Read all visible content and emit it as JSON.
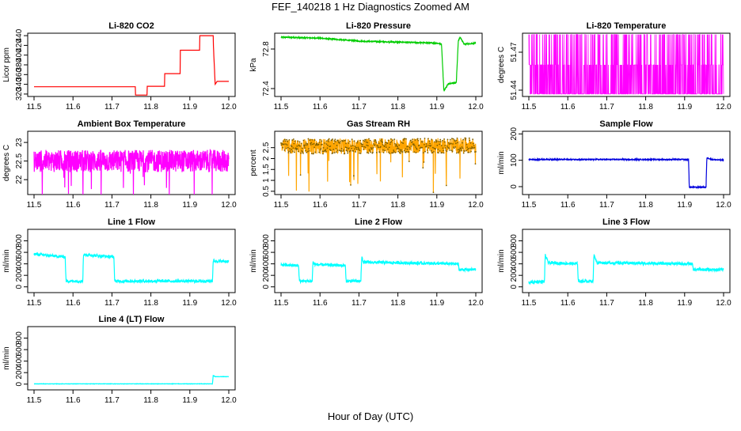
{
  "figure": {
    "title": "FEF_140218  1 Hz Diagnostics Zoomed AM",
    "xlabel": "Hour of Day (UTC)"
  },
  "chart_data": [
    {
      "id": "co2",
      "type": "line",
      "title": "Li-820 CO2",
      "ylabel": "Licor ppm",
      "color": "#ff0000",
      "xlim": [
        11.5,
        12.0
      ],
      "xticks": [
        11.5,
        11.6,
        11.7,
        11.8,
        11.9,
        12.0
      ],
      "ylim": [
        315,
        445
      ],
      "yticks": [
        320,
        340,
        360,
        380,
        400,
        420,
        440
      ],
      "noise": 0,
      "points": [
        [
          11.5,
          335
        ],
        [
          11.76,
          335
        ],
        [
          11.76,
          318
        ],
        [
          11.79,
          318
        ],
        [
          11.79,
          336
        ],
        [
          11.835,
          336
        ],
        [
          11.835,
          362
        ],
        [
          11.875,
          362
        ],
        [
          11.875,
          410
        ],
        [
          11.925,
          410
        ],
        [
          11.925,
          440
        ],
        [
          11.96,
          440
        ],
        [
          11.96,
          428
        ],
        [
          11.965,
          340
        ],
        [
          11.97,
          346
        ],
        [
          12.0,
          346
        ]
      ]
    },
    {
      "id": "pressure",
      "type": "line",
      "title": "Li-820 Pressure",
      "ylabel": "kPa",
      "color": "#00cc00",
      "xlim": [
        11.5,
        12.0
      ],
      "xticks": [
        11.5,
        11.6,
        11.7,
        11.8,
        11.9,
        12.0
      ],
      "ylim": [
        72.32,
        72.96
      ],
      "yticks": [
        72.4,
        72.8
      ],
      "noise": 0.006,
      "points": [
        [
          11.5,
          72.92
        ],
        [
          11.6,
          72.91
        ],
        [
          11.7,
          72.88
        ],
        [
          11.8,
          72.87
        ],
        [
          11.9,
          72.86
        ],
        [
          11.912,
          72.85
        ],
        [
          11.918,
          72.38
        ],
        [
          11.93,
          72.45
        ],
        [
          11.95,
          72.46
        ],
        [
          11.955,
          72.88
        ],
        [
          11.96,
          72.92
        ],
        [
          11.97,
          72.85
        ],
        [
          12.0,
          72.86
        ]
      ]
    },
    {
      "id": "licor-temp",
      "type": "line",
      "title": "Li-820 Temperature",
      "ylabel": "degrees C",
      "color": "#ff00ff",
      "xlim": [
        11.5,
        12.0
      ],
      "xticks": [
        11.5,
        11.6,
        11.7,
        11.8,
        11.9,
        12.0
      ],
      "ylim": [
        51.435,
        51.485
      ],
      "yticks": [
        51.44,
        51.47
      ],
      "style": "binary",
      "levels": [
        51.437,
        51.46,
        51.484
      ]
    },
    {
      "id": "box-temp",
      "type": "line",
      "title": "Ambient Box Temperature",
      "ylabel": "degrees C",
      "color": "#ff00ff",
      "xlim": [
        11.5,
        12.0
      ],
      "xticks": [
        11.5,
        11.6,
        11.7,
        11.8,
        11.9,
        12.0
      ],
      "ylim": [
        21.6,
        23.3
      ],
      "yticks": [
        22.0,
        22.5,
        23.0
      ],
      "noise": 0.3,
      "spikes": "down",
      "points": [
        [
          11.5,
          22.5
        ],
        [
          12.0,
          22.5
        ]
      ]
    },
    {
      "id": "rh",
      "type": "line",
      "title": "Gas Stream RH",
      "ylabel": "percent",
      "color": "#ffa500",
      "xlim": [
        11.5,
        12.0
      ],
      "xticks": [
        11.5,
        11.6,
        11.7,
        11.8,
        11.9,
        12.0
      ],
      "ylim": [
        0.35,
        3.25
      ],
      "yticks": [
        0.5,
        1.0,
        1.5,
        2.0,
        2.5
      ],
      "noise": 0.35,
      "spikes": "down",
      "markers": true,
      "points": [
        [
          11.5,
          2.55
        ],
        [
          12.0,
          2.6
        ]
      ]
    },
    {
      "id": "sample-flow",
      "type": "line",
      "title": "Sample Flow",
      "ylabel": "ml/min",
      "color": "#0000dd",
      "xlim": [
        11.5,
        12.0
      ],
      "xticks": [
        11.5,
        11.6,
        11.7,
        11.8,
        11.9,
        12.0
      ],
      "ylim": [
        -30,
        210
      ],
      "yticks": [
        0,
        100,
        200
      ],
      "noise": 2,
      "points": [
        [
          11.5,
          103
        ],
        [
          11.91,
          103
        ],
        [
          11.912,
          -2
        ],
        [
          11.955,
          -2
        ],
        [
          11.957,
          110
        ],
        [
          11.97,
          103
        ],
        [
          12.0,
          100
        ]
      ]
    },
    {
      "id": "line1",
      "type": "line",
      "title": "Line 1 Flow",
      "ylabel": "ml/min",
      "color": "#00ffff",
      "xlim": [
        11.5,
        12.0
      ],
      "xticks": [
        11.5,
        11.6,
        11.7,
        11.8,
        11.9,
        12.0
      ],
      "ylim": [
        -100,
        1000
      ],
      "yticks": [
        0,
        200,
        400,
        600,
        800
      ],
      "noise": 25,
      "points": [
        [
          11.5,
          570
        ],
        [
          11.58,
          520
        ],
        [
          11.582,
          100
        ],
        [
          11.625,
          100
        ],
        [
          11.627,
          560
        ],
        [
          11.705,
          520
        ],
        [
          11.707,
          100
        ],
        [
          11.958,
          100
        ],
        [
          11.96,
          450
        ],
        [
          12.0,
          440
        ]
      ]
    },
    {
      "id": "line2",
      "type": "line",
      "title": "Line 2 Flow",
      "ylabel": "ml/min",
      "color": "#00ffff",
      "xlim": [
        11.5,
        12.0
      ],
      "xticks": [
        11.5,
        11.6,
        11.7,
        11.8,
        11.9,
        12.0
      ],
      "ylim": [
        -100,
        1000
      ],
      "yticks": [
        0,
        200,
        400,
        600,
        800
      ],
      "noise": 25,
      "points": [
        [
          11.5,
          380
        ],
        [
          11.545,
          370
        ],
        [
          11.547,
          100
        ],
        [
          11.58,
          100
        ],
        [
          11.582,
          450
        ],
        [
          11.585,
          390
        ],
        [
          11.665,
          370
        ],
        [
          11.667,
          100
        ],
        [
          11.705,
          100
        ],
        [
          11.707,
          520
        ],
        [
          11.712,
          430
        ],
        [
          11.955,
          400
        ],
        [
          11.957,
          300
        ],
        [
          12.0,
          300
        ]
      ]
    },
    {
      "id": "line3",
      "type": "line",
      "title": "Line 3 Flow",
      "ylabel": "ml/min",
      "color": "#00ffff",
      "xlim": [
        11.5,
        12.0
      ],
      "xticks": [
        11.5,
        11.6,
        11.7,
        11.8,
        11.9,
        12.0
      ],
      "ylim": [
        -100,
        1000
      ],
      "yticks": [
        0,
        200,
        400,
        600,
        800
      ],
      "noise": 25,
      "points": [
        [
          11.5,
          80
        ],
        [
          11.54,
          90
        ],
        [
          11.542,
          550
        ],
        [
          11.55,
          420
        ],
        [
          11.625,
          400
        ],
        [
          11.627,
          100
        ],
        [
          11.665,
          100
        ],
        [
          11.667,
          560
        ],
        [
          11.675,
          420
        ],
        [
          11.92,
          400
        ],
        [
          11.922,
          300
        ],
        [
          12.0,
          300
        ]
      ]
    },
    {
      "id": "line4",
      "type": "line",
      "title": "Line 4 (LT) Flow",
      "ylabel": "ml/min",
      "color": "#00ffff",
      "xlim": [
        11.5,
        12.0
      ],
      "xticks": [
        11.5,
        11.6,
        11.7,
        11.8,
        11.9,
        12.0
      ],
      "ylim": [
        -100,
        1000
      ],
      "yticks": [
        0,
        200,
        400,
        600,
        800
      ],
      "noise": 3,
      "points": [
        [
          11.5,
          5
        ],
        [
          11.958,
          5
        ],
        [
          11.96,
          150
        ],
        [
          11.965,
          130
        ],
        [
          12.0,
          130
        ]
      ]
    }
  ]
}
